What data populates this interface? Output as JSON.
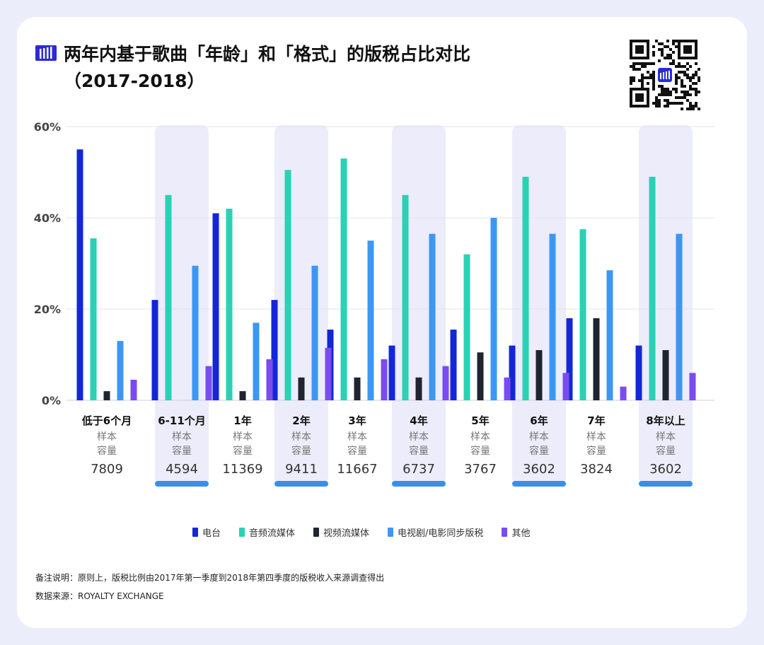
{
  "title_line1": "两年内基于歌曲「年龄」和「格式」的版税占比对比",
  "title_line2": "（2017-2018）",
  "note_line": "备注说明：原则上，版税比例由2017年第一季度到2018年第四季度的版税收入来源调查得出",
  "source_line": "数据来源：ROYALTY EXCHANGE",
  "sample_label": [
    "样本",
    "容量"
  ],
  "colors": {
    "radio": "#1327d8",
    "audio_streaming": "#2bd1b4",
    "video_streaming": "#1f2430",
    "tv_film_sync": "#3d97f2",
    "other": "#7a4cf0",
    "highlight_band": "#ececfa",
    "highlight_bar": "#3a8eea",
    "logo": "#2a2bd6"
  },
  "chart_data": {
    "type": "bar",
    "title": "两年内基于歌曲「年龄」和「格式」的版税占比对比（2017-2018）",
    "xlabel": "",
    "ylabel": "",
    "ylim": [
      0,
      60
    ],
    "yticks": [
      0,
      20,
      40,
      60
    ],
    "ytick_labels": [
      "0%",
      "20%",
      "40%",
      "60%"
    ],
    "grid": true,
    "legend_position": "bottom",
    "categories": [
      "低于6个月",
      "6-11个月",
      "1年",
      "2年",
      "3年",
      "4年",
      "5年",
      "6年",
      "7年",
      "8年以上"
    ],
    "sample_sizes": [
      "7809",
      "4594",
      "11369",
      "9411",
      "11667",
      "6737",
      "3767",
      "3602",
      "3824",
      "3602"
    ],
    "highlighted": [
      false,
      true,
      false,
      true,
      false,
      true,
      false,
      true,
      false,
      true
    ],
    "series": [
      {
        "name": "电台",
        "values": [
          55,
          22,
          41,
          22,
          15.5,
          12,
          15.5,
          12,
          18,
          12
        ]
      },
      {
        "name": "音频流媒体",
        "values": [
          35.5,
          45,
          42,
          50.5,
          53,
          45,
          32,
          49,
          37.5,
          49
        ]
      },
      {
        "name": "视频流媒体",
        "values": [
          2,
          0,
          2,
          5,
          5,
          5,
          10.5,
          11,
          18,
          11
        ]
      },
      {
        "name": "电视剧/电影同步版税",
        "values": [
          13,
          29.5,
          17,
          29.5,
          35,
          36.5,
          40,
          36.5,
          28.5,
          36.5
        ]
      },
      {
        "name": "其他",
        "values": [
          4.5,
          7.5,
          9,
          11.5,
          9,
          7.5,
          5,
          6,
          3,
          6
        ]
      }
    ]
  }
}
